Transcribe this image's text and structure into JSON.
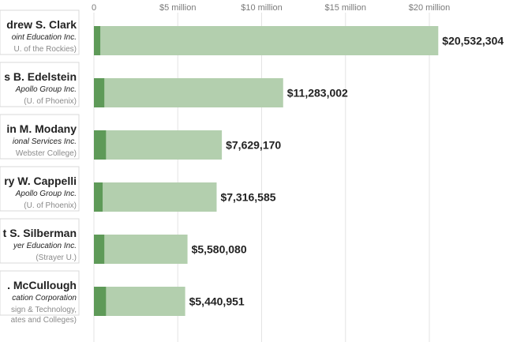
{
  "chart_data": {
    "type": "bar",
    "orientation": "horizontal",
    "x_ticks": [
      {
        "value": 0,
        "label": "0"
      },
      {
        "value": 5000000,
        "label": "$5 million"
      },
      {
        "value": 10000000,
        "label": "$10 million"
      },
      {
        "value": 15000000,
        "label": "$15 million"
      },
      {
        "value": 20000000,
        "label": "$20 million"
      }
    ],
    "xlim": [
      0,
      20000000
    ],
    "grid": true,
    "colors": {
      "bar_light": "#b3cfae",
      "bar_dark": "#5e9a58",
      "grid": "#e3e3e3"
    },
    "rows": [
      {
        "name": "drew S. Clark",
        "company": "oint Education Inc.",
        "school": "U. of the Rockies)",
        "value": 20532304,
        "value_label": "$20,532,304",
        "dark_value": 380000
      },
      {
        "name": "s B. Edelstein",
        "company": "Apollo Group Inc.",
        "school": "(U. of Phoenix)",
        "value": 11283002,
        "value_label": "$11,283,002",
        "dark_value": 620000
      },
      {
        "name": "in M. Modany",
        "company": "ional Services Inc.",
        "school": "Webster College)",
        "value": 7629170,
        "value_label": "$7,629,170",
        "dark_value": 720000
      },
      {
        "name": "ry W. Cappelli",
        "company": "Apollo Group Inc.",
        "school": "(U. of Phoenix)",
        "value": 7316585,
        "value_label": "$7,316,585",
        "dark_value": 520000
      },
      {
        "name": "t S. Silberman",
        "company": "yer Education Inc.",
        "school": "(Strayer U.)",
        "value": 5580080,
        "value_label": "$5,580,080",
        "dark_value": 620000
      },
      {
        "name": ". McCullough",
        "company": "cation Corporation",
        "school": "sign & Technology,",
        "school2": "ates and Colleges)",
        "value": 5440951,
        "value_label": "$5,440,951",
        "dark_value": 720000
      }
    ]
  }
}
